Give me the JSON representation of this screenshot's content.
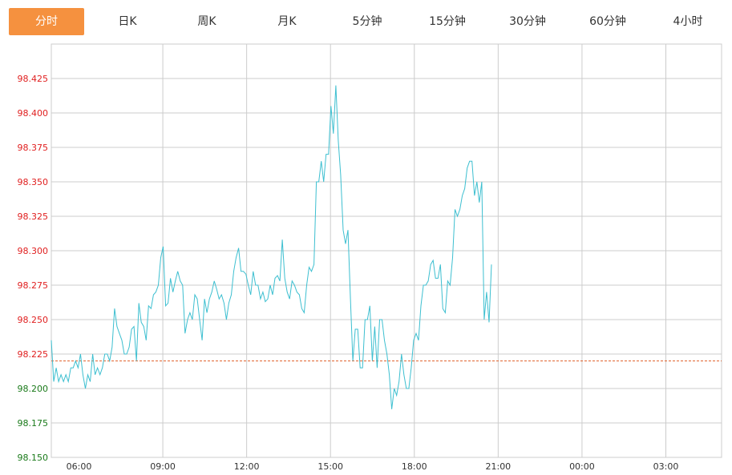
{
  "tabs": [
    {
      "label": "分时",
      "active": true
    },
    {
      "label": "日K"
    },
    {
      "label": "周K"
    },
    {
      "label": "月K"
    },
    {
      "label": "5分钟"
    },
    {
      "label": "15分钟"
    },
    {
      "label": "30分钟"
    },
    {
      "label": "60分钟"
    },
    {
      "label": "4小时"
    }
  ],
  "colors": {
    "accent": "#f5913f",
    "line": "#3dbfd0",
    "above_ref": "#e02020",
    "below_ref": "#1a7a1a",
    "ref_line": "#e0602a",
    "grid": "#cccccc"
  },
  "chart_data": {
    "type": "line",
    "grid": true,
    "ylim": [
      98.15,
      98.45
    ],
    "y_ticks": [
      "98.425",
      "98.400",
      "98.375",
      "98.350",
      "98.325",
      "98.300",
      "98.275",
      "98.250",
      "98.225",
      "98.200",
      "98.175",
      "98.150"
    ],
    "x_ticks": [
      "06:00",
      "09:00",
      "12:00",
      "15:00",
      "18:00",
      "21:00",
      "00:00",
      "03:00"
    ],
    "reference_value": 98.22,
    "series": [
      {
        "values": [
          98.235,
          98.205,
          98.215,
          98.205,
          98.21,
          98.205,
          98.21,
          98.205,
          98.215,
          98.215,
          98.22,
          98.215,
          98.225,
          98.21,
          98.2,
          98.21,
          98.205,
          98.225,
          98.21,
          98.215,
          98.21,
          98.215,
          98.225,
          98.225,
          98.22,
          98.23,
          98.258,
          98.245,
          98.24,
          98.235,
          98.225,
          98.225,
          98.23,
          98.243,
          98.245,
          98.22,
          98.262,
          98.248,
          98.245,
          98.235,
          98.26,
          98.258,
          98.268,
          98.27,
          98.275,
          98.295,
          98.303,
          98.26,
          98.262,
          98.28,
          98.27,
          98.278,
          98.285,
          98.278,
          98.275,
          98.24,
          98.25,
          98.255,
          98.25,
          98.268,
          98.265,
          98.25,
          98.235,
          98.265,
          98.255,
          98.265,
          98.27,
          98.278,
          98.272,
          98.265,
          98.268,
          98.262,
          98.25,
          98.262,
          98.268,
          98.285,
          98.295,
          98.302,
          98.285,
          98.285,
          98.283,
          98.275,
          98.268,
          98.285,
          98.275,
          98.275,
          98.265,
          98.27,
          98.263,
          98.265,
          98.275,
          98.268,
          98.28,
          98.282,
          98.278,
          98.308,
          98.28,
          98.27,
          98.265,
          98.278,
          98.275,
          98.27,
          98.268,
          98.258,
          98.255,
          98.275,
          98.288,
          98.285,
          98.29,
          98.35,
          98.35,
          98.365,
          98.35,
          98.37,
          98.37,
          98.405,
          98.385,
          98.42,
          98.38,
          98.355,
          98.315,
          98.305,
          98.315,
          98.265,
          98.22,
          98.243,
          98.243,
          98.215,
          98.215,
          98.25,
          98.25,
          98.26,
          98.22,
          98.245,
          98.215,
          98.25,
          98.25,
          98.235,
          98.225,
          98.21,
          98.185,
          98.2,
          98.195,
          98.205,
          98.225,
          98.21,
          98.2,
          98.2,
          98.215,
          98.235,
          98.24,
          98.235,
          98.26,
          98.275,
          98.275,
          98.278,
          98.29,
          98.293,
          98.28,
          98.28,
          98.29,
          98.258,
          98.255,
          98.278,
          98.275,
          98.295,
          98.33,
          98.325,
          98.33,
          98.34,
          98.345,
          98.36,
          98.365,
          98.365,
          98.34,
          98.35,
          98.335,
          98.35,
          98.25,
          98.27,
          98.248,
          98.29
        ]
      }
    ]
  }
}
